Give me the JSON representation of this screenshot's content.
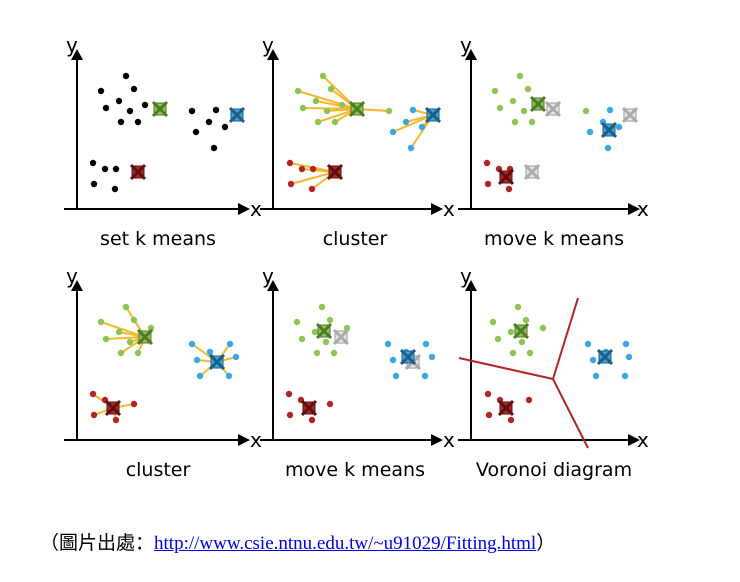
{
  "panels": [
    {
      "caption": "set k means",
      "x_axis": "x",
      "y_axis": "y"
    },
    {
      "caption": "cluster",
      "x_axis": "x",
      "y_axis": "y"
    },
    {
      "caption": "move k means",
      "x_axis": "x",
      "y_axis": "y"
    },
    {
      "caption": "cluster",
      "x_axis": "x",
      "y_axis": "y"
    },
    {
      "caption": "move k means",
      "x_axis": "x",
      "y_axis": "y"
    },
    {
      "caption": "Voronoi diagram",
      "x_axis": "x",
      "y_axis": "y"
    }
  ],
  "source": {
    "prefix": "（圖片出處：",
    "url": "http://www.csie.ntnu.edu.tw/~u91029/Fitting.html",
    "suffix": "）"
  },
  "colors": {
    "green": "#8dc452",
    "blue": "#3aa7e4",
    "red": "#b22525",
    "black": "#000000",
    "link_line": "#f5b82e",
    "old_mean": "#d0d0d0",
    "voronoi_line": "#b22525"
  }
}
